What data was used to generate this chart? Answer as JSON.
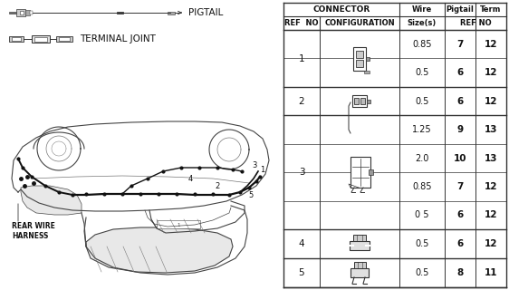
{
  "pigtail_label": "PIGTAIL",
  "terminal_label": "TERMINAL JOINT",
  "rear_wire_label": "REAR WIRE\nHARNESS",
  "table_rows": [
    {
      "ref": "1",
      "wire": "0.85",
      "pigtail": "7",
      "term": "12"
    },
    {
      "ref": "",
      "wire": "0.5",
      "pigtail": "6",
      "term": "12"
    },
    {
      "ref": "2",
      "wire": "0.5",
      "pigtail": "6",
      "term": "12"
    },
    {
      "ref": "3",
      "wire": "1.25",
      "pigtail": "9",
      "term": "13"
    },
    {
      "ref": "",
      "wire": "2.0",
      "pigtail": "10",
      "term": "13"
    },
    {
      "ref": "",
      "wire": "0.85",
      "pigtail": "7",
      "term": "12"
    },
    {
      "ref": "",
      "wire": "0 5",
      "pigtail": "6",
      "term": "12"
    },
    {
      "ref": "4",
      "wire": "0.5",
      "pigtail": "6",
      "term": "12"
    },
    {
      "ref": "5",
      "wire": "0.5",
      "pigtail": "8",
      "term": "11"
    }
  ],
  "line_color": "#333333",
  "text_color": "#111111",
  "gray": "#888888"
}
